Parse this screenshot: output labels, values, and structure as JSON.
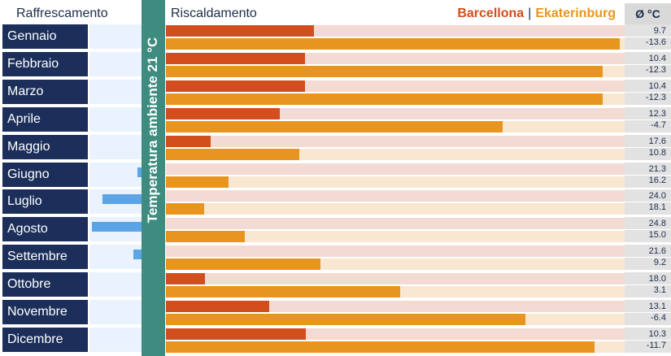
{
  "chart_data": {
    "type": "bar",
    "headers": {
      "cooling": "Raffrescamento",
      "heating": "Riscaldamento",
      "unit": "Ø °C",
      "ambient_label": "Temperatura ambiente 21 °C"
    },
    "ambient_temperature": 21,
    "series": [
      {
        "name": "Barcellona",
        "color": "#d24e1d",
        "track_color": "#f3dbd3",
        "values": [
          9.7,
          10.4,
          10.4,
          12.3,
          17.6,
          21.3,
          24.0,
          24.8,
          21.6,
          18.0,
          13.1,
          10.3
        ]
      },
      {
        "name": "Ekaterinburg",
        "color": "#e8951f",
        "track_color": "#f9e7d2",
        "values": [
          -13.6,
          -12.3,
          -12.3,
          -4.7,
          10.8,
          16.2,
          18.1,
          15.0,
          9.2,
          3.1,
          -6.4,
          -11.7
        ]
      }
    ],
    "categories": [
      "Gennaio",
      "Febbraio",
      "Marzo",
      "Aprile",
      "Maggio",
      "Giugno",
      "Luglio",
      "Agosto",
      "Settembre",
      "Ottobre",
      "Novembre",
      "Dicembre"
    ],
    "value_labels": {
      "barcellona": [
        "9.7",
        "10.4",
        "10.4",
        "12.3",
        "17.6",
        "21.3",
        "24.0",
        "24.8",
        "21.6",
        "18.0",
        "13.1",
        "10.3"
      ],
      "ekaterinburg": [
        "-13.6",
        "-12.3",
        "-12.3",
        "-4.7",
        "10.8",
        "16.2",
        "18.1",
        "15.0",
        "9.2",
        "3.1",
        "-6.4",
        "-11.7"
      ]
    },
    "heating_range": [
      21,
      -14
    ],
    "cooling_range": [
      21,
      25
    ],
    "cooling_color": "#5ba4e6"
  }
}
